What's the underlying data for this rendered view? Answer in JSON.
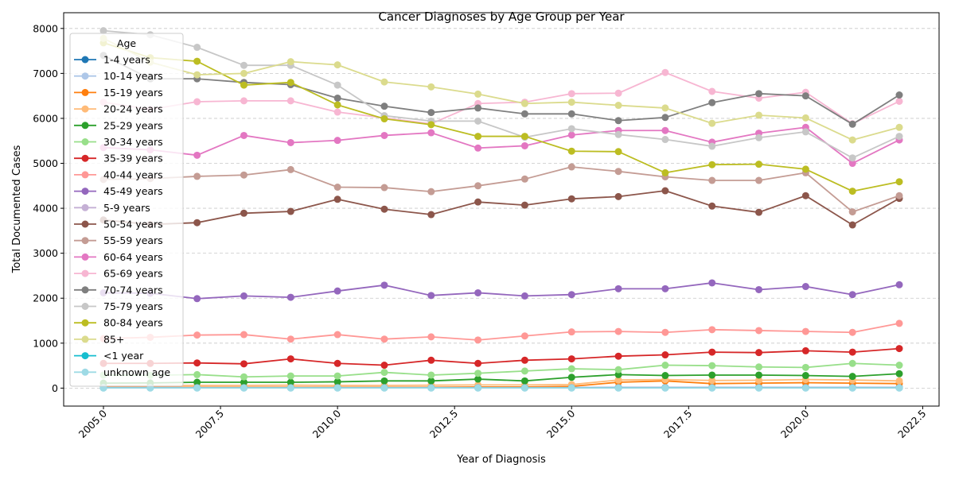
{
  "chart_data": {
    "type": "line",
    "title": "Cancer Diagnoses by Age Group per Year",
    "xlabel": "Year of Diagnosis",
    "ylabel": "Total Documented Cases",
    "xlim": [
      2004.15,
      2022.85
    ],
    "ylim": [
      -400,
      8350
    ],
    "x_ticks": [
      2005.0,
      2007.5,
      2010.0,
      2012.5,
      2015.0,
      2017.5,
      2020.0,
      2022.5
    ],
    "x_tick_labels": [
      "2005.0",
      "2007.5",
      "2010.0",
      "2012.5",
      "2015.0",
      "2017.5",
      "2020.0",
      "2022.5"
    ],
    "y_ticks": [
      0,
      1000,
      2000,
      3000,
      4000,
      5000,
      6000,
      7000,
      8000
    ],
    "y_tick_labels": [
      "0",
      "1000",
      "2000",
      "3000",
      "4000",
      "5000",
      "6000",
      "7000",
      "8000"
    ],
    "grid": "y-dashed",
    "legend_title": "Age",
    "legend_position": "upper-left",
    "x": [
      2005,
      2006,
      2007,
      2008,
      2009,
      2010,
      2011,
      2012,
      2013,
      2014,
      2015,
      2016,
      2017,
      2018,
      2019,
      2020,
      2021,
      2022
    ],
    "series": [
      {
        "name": "1-4 years",
        "color": "#1f77b4",
        "values": [
          10,
          10,
          10,
          10,
          10,
          10,
          10,
          10,
          10,
          10,
          10,
          10,
          10,
          10,
          10,
          10,
          10,
          10
        ]
      },
      {
        "name": "10-14 years",
        "color": "#aec7e8",
        "values": [
          10,
          10,
          10,
          10,
          10,
          10,
          10,
          10,
          10,
          10,
          15,
          20,
          20,
          20,
          20,
          20,
          20,
          20
        ]
      },
      {
        "name": "15-19 years",
        "color": "#ff7f0e",
        "values": [
          20,
          20,
          20,
          20,
          20,
          20,
          20,
          20,
          25,
          25,
          40,
          130,
          160,
          100,
          110,
          120,
          110,
          100
        ]
      },
      {
        "name": "20-24 years",
        "color": "#ffbb78",
        "values": [
          50,
          55,
          60,
          60,
          65,
          60,
          60,
          65,
          70,
          70,
          80,
          180,
          190,
          170,
          175,
          190,
          180,
          160
        ]
      },
      {
        "name": "25-29 years",
        "color": "#2ca02c",
        "values": [
          110,
          115,
          130,
          130,
          130,
          140,
          160,
          160,
          200,
          160,
          240,
          300,
          280,
          290,
          290,
          280,
          260,
          320
        ]
      },
      {
        "name": "30-34 years",
        "color": "#98df8a",
        "values": [
          290,
          285,
          300,
          250,
          270,
          270,
          350,
          290,
          330,
          380,
          430,
          410,
          510,
          500,
          470,
          460,
          550,
          510
        ]
      },
      {
        "name": "35-39 years",
        "color": "#d62728",
        "values": [
          550,
          550,
          560,
          540,
          650,
          550,
          510,
          620,
          550,
          620,
          650,
          710,
          740,
          800,
          790,
          830,
          800,
          880
        ]
      },
      {
        "name": "40-44 years",
        "color": "#ff9896",
        "values": [
          1100,
          1130,
          1180,
          1190,
          1090,
          1190,
          1090,
          1140,
          1070,
          1160,
          1250,
          1260,
          1240,
          1300,
          1280,
          1260,
          1240,
          1440
        ]
      },
      {
        "name": "45-49 years",
        "color": "#9467bd",
        "values": [
          2120,
          2110,
          1990,
          2050,
          2020,
          2160,
          2290,
          2060,
          2120,
          2050,
          2080,
          2210,
          2210,
          2340,
          2190,
          2260,
          2080,
          2300
        ]
      },
      {
        "name": "5-9 years",
        "color": "#c5b0d5",
        "values": [
          10,
          10,
          10,
          10,
          10,
          10,
          10,
          10,
          10,
          10,
          10,
          10,
          10,
          10,
          10,
          10,
          10,
          10
        ]
      },
      {
        "name": "50-54 years",
        "color": "#8c564b",
        "values": [
          3740,
          3640,
          3680,
          3890,
          3930,
          4200,
          3980,
          3860,
          4140,
          4070,
          4210,
          4260,
          4390,
          4050,
          3910,
          4280,
          3630,
          4220
        ]
      },
      {
        "name": "55-59 years",
        "color": "#c49c94",
        "values": [
          4640,
          4660,
          4710,
          4740,
          4860,
          4470,
          4460,
          4370,
          4500,
          4650,
          4920,
          4820,
          4700,
          4620,
          4620,
          4790,
          3920,
          4280
        ]
      },
      {
        "name": "60-64 years",
        "color": "#e377c2",
        "values": [
          5350,
          5300,
          5180,
          5620,
          5460,
          5510,
          5620,
          5680,
          5340,
          5390,
          5630,
          5730,
          5730,
          5470,
          5670,
          5800,
          5000,
          5520
        ]
      },
      {
        "name": "65-69 years",
        "color": "#f7b6d2",
        "values": [
          6360,
          6200,
          6370,
          6390,
          6390,
          6140,
          6010,
          5880,
          6330,
          6360,
          6550,
          6560,
          7020,
          6600,
          6450,
          6580,
          5880,
          6380
        ]
      },
      {
        "name": "70-74 years",
        "color": "#7f7f7f",
        "values": [
          7400,
          6880,
          6880,
          6800,
          6750,
          6450,
          6270,
          6130,
          6230,
          6100,
          6100,
          5950,
          6020,
          6350,
          6550,
          6500,
          5870,
          6520
        ]
      },
      {
        "name": "75-79 years",
        "color": "#c7c7c7",
        "values": [
          7950,
          7860,
          7580,
          7180,
          7180,
          6740,
          6060,
          5940,
          5940,
          5580,
          5770,
          5640,
          5530,
          5380,
          5570,
          5700,
          5120,
          5600
        ]
      },
      {
        "name": "80-84 years",
        "color": "#bcbd22",
        "values": [
          7680,
          7350,
          7270,
          6740,
          6800,
          6300,
          5990,
          5860,
          5600,
          5600,
          5270,
          5260,
          4790,
          4970,
          4980,
          4870,
          4380,
          4590
        ]
      },
      {
        "name": "85+",
        "color": "#dbdb8d",
        "values": [
          7780,
          7250,
          6970,
          7000,
          7260,
          7190,
          6810,
          6700,
          6540,
          6330,
          6360,
          6290,
          6230,
          5890,
          6070,
          6010,
          5520,
          5800
        ]
      },
      {
        "name": "<1 year",
        "color": "#17becf",
        "values": [
          5,
          5,
          5,
          5,
          5,
          5,
          5,
          5,
          5,
          5,
          5,
          5,
          5,
          5,
          5,
          5,
          5,
          5
        ]
      },
      {
        "name": "unknown age",
        "color": "#9edae5",
        "values": [
          2,
          2,
          2,
          2,
          2,
          2,
          2,
          2,
          2,
          2,
          2,
          2,
          2,
          2,
          2,
          2,
          2,
          2
        ]
      }
    ]
  }
}
